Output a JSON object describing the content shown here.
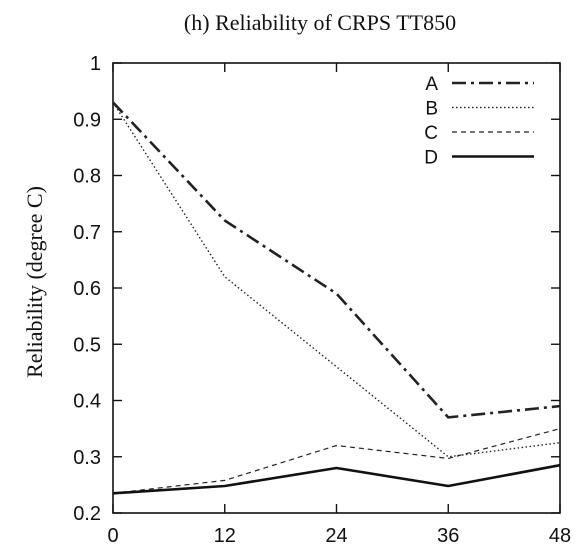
{
  "chart_data": {
    "type": "line",
    "title": "(h)   Reliability of CRPS TT850",
    "xlabel": "",
    "ylabel": "Reliability (degree C)",
    "x": [
      0,
      12,
      24,
      36,
      48
    ],
    "xlim": [
      0,
      48
    ],
    "ylim": [
      0.2,
      1.0
    ],
    "xticks": [
      "0",
      "12",
      "24",
      "36",
      "48"
    ],
    "yticks": [
      "0.2",
      "0.3",
      "0.4",
      "0.5",
      "0.6",
      "0.7",
      "0.8",
      "0.9",
      "1"
    ],
    "grid": false,
    "legend_position": "top-right",
    "series": [
      {
        "name": "A",
        "values": [
          0.93,
          0.72,
          0.59,
          0.37,
          0.39
        ],
        "style": "dash-dot",
        "color": "#222222"
      },
      {
        "name": "B",
        "values": [
          0.93,
          0.62,
          0.46,
          0.3,
          0.325
        ],
        "style": "dotted",
        "color": "#222222"
      },
      {
        "name": "C",
        "values": [
          0.235,
          0.258,
          0.32,
          0.297,
          0.35
        ],
        "style": "dashed",
        "color": "#222222"
      },
      {
        "name": "D",
        "values": [
          0.235,
          0.248,
          0.28,
          0.248,
          0.285
        ],
        "style": "solid",
        "color": "#111111"
      }
    ]
  }
}
